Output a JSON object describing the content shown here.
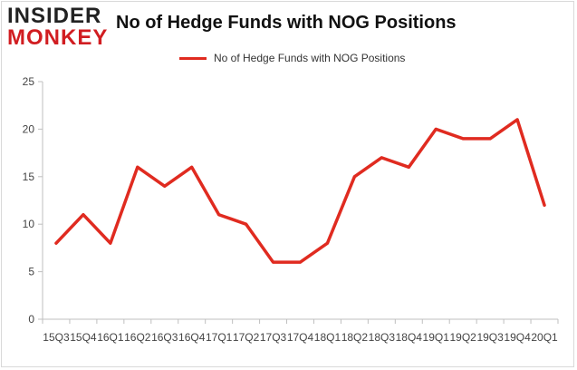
{
  "logo": {
    "line1": "INSIDER",
    "line2": "MONKEY",
    "colors": {
      "line1": "#222222",
      "line2": "#d11d21"
    }
  },
  "chart_data": {
    "type": "line",
    "title": "No of Hedge Funds with NOG Positions",
    "xlabel": "",
    "ylabel": "",
    "categories": [
      "15Q3",
      "15Q4",
      "16Q1",
      "16Q2",
      "16Q3",
      "16Q4",
      "17Q1",
      "17Q2",
      "17Q3",
      "17Q4",
      "18Q1",
      "18Q2",
      "18Q3",
      "18Q4",
      "19Q1",
      "19Q2",
      "19Q3",
      "19Q4",
      "20Q1"
    ],
    "series": [
      {
        "name": "No of Hedge Funds with NOG Positions",
        "color": "#e02b20",
        "values": [
          8,
          11,
          8,
          16,
          14,
          16,
          11,
          10,
          6,
          6,
          8,
          15,
          17,
          16,
          20,
          19,
          19,
          21,
          12
        ]
      }
    ],
    "ylim": [
      0,
      25
    ],
    "yticks": [
      0,
      5,
      10,
      15,
      20,
      25
    ],
    "grid": false,
    "legend": "top"
  }
}
